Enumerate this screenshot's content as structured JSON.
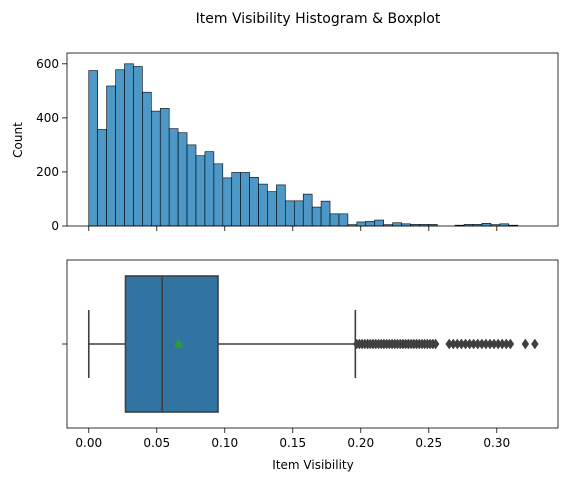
{
  "title": "Item Visibility Histogram & Boxplot",
  "colors": {
    "hist_fill": "#4e98c8",
    "box_fill": "#3274a1",
    "mean_marker": "#2ca02c",
    "line": "#3f3f3f"
  },
  "chart_data": [
    {
      "type": "histogram",
      "ylabel": "Count",
      "xlabel": "",
      "xlim": [
        -0.016,
        0.345
      ],
      "ylim": [
        0,
        640
      ],
      "yticks": [
        0,
        200,
        400,
        600
      ],
      "bin_edges_start": 0.0,
      "bin_width": 0.00657,
      "counts": [
        575,
        357,
        518,
        578,
        600,
        590,
        495,
        425,
        435,
        360,
        345,
        300,
        260,
        275,
        230,
        178,
        198,
        198,
        180,
        155,
        127,
        152,
        93,
        93,
        118,
        70,
        92,
        45,
        45,
        5,
        15,
        17,
        22,
        5,
        12,
        8,
        6,
        6,
        6,
        0,
        0,
        3,
        6,
        6,
        10,
        5,
        8,
        3
      ],
      "grid": false
    },
    {
      "type": "boxplot",
      "xlabel": "Item Visibility",
      "xlim": [
        -0.016,
        0.345
      ],
      "xticks": [
        "0.00",
        "0.05",
        "0.10",
        "0.15",
        "0.20",
        "0.25",
        "0.30"
      ],
      "whisker_low": 0.0,
      "q1": 0.027,
      "median": 0.054,
      "q3": 0.095,
      "whisker_high": 0.196,
      "mean": 0.066,
      "outliers": [
        0.197,
        0.199,
        0.201,
        0.203,
        0.205,
        0.207,
        0.209,
        0.211,
        0.213,
        0.215,
        0.217,
        0.219,
        0.221,
        0.223,
        0.225,
        0.227,
        0.229,
        0.231,
        0.233,
        0.235,
        0.237,
        0.239,
        0.241,
        0.243,
        0.245,
        0.247,
        0.249,
        0.251,
        0.253,
        0.255,
        0.265,
        0.268,
        0.271,
        0.274,
        0.277,
        0.28,
        0.283,
        0.286,
        0.289,
        0.292,
        0.295,
        0.298,
        0.301,
        0.304,
        0.307,
        0.31,
        0.321,
        0.328
      ]
    }
  ]
}
